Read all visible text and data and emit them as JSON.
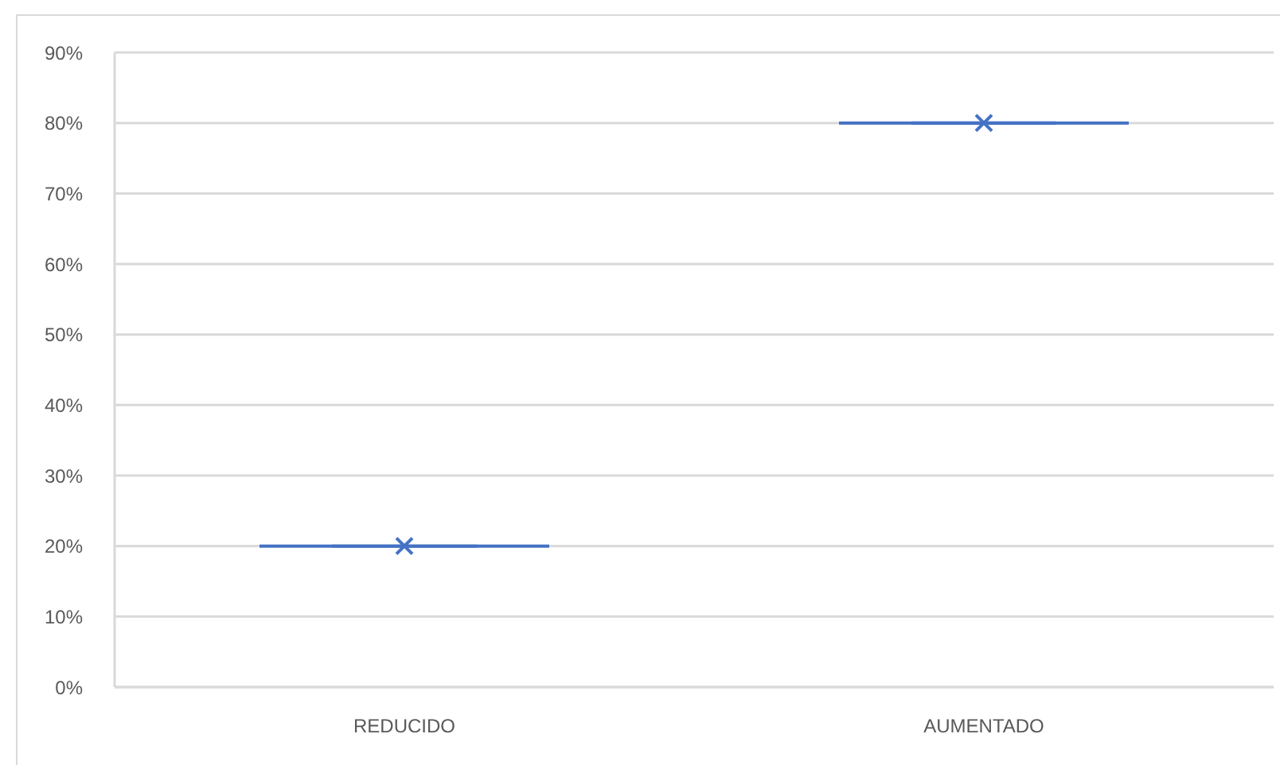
{
  "chart_data": {
    "type": "box",
    "categories": [
      "REDUCIDO",
      "AUMENTADO"
    ],
    "boxes": [
      {
        "low": 20,
        "q1": 20,
        "median": 20,
        "q3": 20,
        "high": 20,
        "mean": 20
      },
      {
        "low": 80,
        "q1": 80,
        "median": 80,
        "q3": 80,
        "high": 80,
        "mean": 80
      }
    ],
    "color": "#4472c4",
    "marker": "cross",
    "grid": "y",
    "ylim": [
      0,
      90
    ],
    "yticks": [
      {
        "value": 0,
        "label": "0%"
      },
      {
        "value": 10,
        "label": "10%"
      },
      {
        "value": 20,
        "label": "20%"
      },
      {
        "value": 30,
        "label": "30%"
      },
      {
        "value": 40,
        "label": "40%"
      },
      {
        "value": 50,
        "label": "50%"
      },
      {
        "value": 60,
        "label": "60%"
      },
      {
        "value": 70,
        "label": "70%"
      },
      {
        "value": 80,
        "label": "80%"
      },
      {
        "value": 90,
        "label": "90%"
      }
    ]
  }
}
